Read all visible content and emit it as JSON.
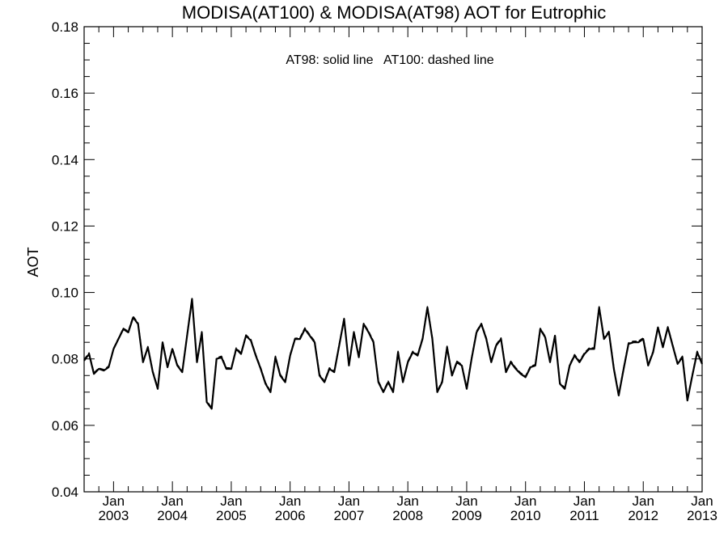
{
  "chart_data": {
    "type": "line",
    "title": "MODISA(AT100) & MODISA(AT98)  AOT for Eutrophic",
    "annotation": "AT98: solid line   AT100: dashed line",
    "ylabel": "AOT",
    "xlabel": "",
    "ylim": [
      0.04,
      0.18
    ],
    "yticks": [
      0.04,
      0.06,
      0.08,
      0.1,
      0.12,
      0.14,
      0.16,
      0.18
    ],
    "ytick_labels": [
      "0.04",
      "0.06",
      "0.08",
      "0.10",
      "0.12",
      "0.14",
      "0.16",
      "0.18"
    ],
    "xlim": [
      "2002-07",
      "2013-01"
    ],
    "xticks": [
      {
        "date": "2003-01",
        "month": "Jan",
        "year": "2003"
      },
      {
        "date": "2004-01",
        "month": "Jan",
        "year": "2004"
      },
      {
        "date": "2005-01",
        "month": "Jan",
        "year": "2005"
      },
      {
        "date": "2006-01",
        "month": "Jan",
        "year": "2006"
      },
      {
        "date": "2007-01",
        "month": "Jan",
        "year": "2007"
      },
      {
        "date": "2008-01",
        "month": "Jan",
        "year": "2008"
      },
      {
        "date": "2009-01",
        "month": "Jan",
        "year": "2009"
      },
      {
        "date": "2010-01",
        "month": "Jan",
        "year": "2010"
      },
      {
        "date": "2011-01",
        "month": "Jan",
        "year": "2011"
      },
      {
        "date": "2012-01",
        "month": "Jan",
        "year": "2012"
      },
      {
        "date": "2013-01",
        "month": "Jan",
        "year": "2013"
      }
    ],
    "grid": false,
    "x": [
      "2002-07",
      "2002-08",
      "2002-09",
      "2002-10",
      "2002-11",
      "2002-12",
      "2003-01",
      "2003-02",
      "2003-03",
      "2003-04",
      "2003-05",
      "2003-06",
      "2003-07",
      "2003-08",
      "2003-09",
      "2003-10",
      "2003-11",
      "2003-12",
      "2004-01",
      "2004-02",
      "2004-03",
      "2004-04",
      "2004-05",
      "2004-06",
      "2004-07",
      "2004-08",
      "2004-09",
      "2004-10",
      "2004-11",
      "2004-12",
      "2005-01",
      "2005-02",
      "2005-03",
      "2005-04",
      "2005-05",
      "2005-06",
      "2005-07",
      "2005-08",
      "2005-09",
      "2005-10",
      "2005-11",
      "2005-12",
      "2006-01",
      "2006-02",
      "2006-03",
      "2006-04",
      "2006-05",
      "2006-06",
      "2006-07",
      "2006-08",
      "2006-09",
      "2006-10",
      "2006-11",
      "2006-12",
      "2007-01",
      "2007-02",
      "2007-03",
      "2007-04",
      "2007-05",
      "2007-06",
      "2007-07",
      "2007-08",
      "2007-09",
      "2007-10",
      "2007-11",
      "2007-12",
      "2008-01",
      "2008-02",
      "2008-03",
      "2008-04",
      "2008-05",
      "2008-06",
      "2008-07",
      "2008-08",
      "2008-09",
      "2008-10",
      "2008-11",
      "2008-12",
      "2009-01",
      "2009-02",
      "2009-03",
      "2009-04",
      "2009-05",
      "2009-06",
      "2009-07",
      "2009-08",
      "2009-09",
      "2009-10",
      "2009-11",
      "2009-12",
      "2010-01",
      "2010-02",
      "2010-03",
      "2010-04",
      "2010-05",
      "2010-06",
      "2010-07",
      "2010-08",
      "2010-09",
      "2010-10",
      "2010-11",
      "2010-12",
      "2011-01",
      "2011-02",
      "2011-03",
      "2011-04",
      "2011-05",
      "2011-06",
      "2011-07",
      "2011-08",
      "2011-09",
      "2011-10",
      "2011-11",
      "2011-12",
      "2012-01",
      "2012-02",
      "2012-03",
      "2012-04",
      "2012-05",
      "2012-06",
      "2012-07",
      "2012-08",
      "2012-09",
      "2012-10",
      "2012-11",
      "2012-12",
      "2013-01"
    ],
    "series": [
      {
        "name": "AT98",
        "style": "solid",
        "color": "#000000",
        "values": [
          0.0795,
          0.0815,
          0.0755,
          0.077,
          0.0765,
          0.0775,
          0.083,
          0.086,
          0.089,
          0.088,
          0.0925,
          0.0905,
          0.079,
          0.0835,
          0.076,
          0.071,
          0.085,
          0.0775,
          0.083,
          0.078,
          0.076,
          0.087,
          0.098,
          0.079,
          0.088,
          0.067,
          0.065,
          0.08,
          0.0805,
          0.077,
          0.077,
          0.083,
          0.0815,
          0.087,
          0.0855,
          0.081,
          0.077,
          0.0725,
          0.07,
          0.0805,
          0.075,
          0.073,
          0.081,
          0.086,
          0.086,
          0.089,
          0.087,
          0.085,
          0.075,
          0.073,
          0.077,
          0.076,
          0.084,
          0.092,
          0.078,
          0.088,
          0.0805,
          0.0905,
          0.088,
          0.085,
          0.073,
          0.07,
          0.073,
          0.07,
          0.082,
          0.073,
          0.079,
          0.082,
          0.081,
          0.086,
          0.0955,
          0.086,
          0.07,
          0.073,
          0.0835,
          0.075,
          0.079,
          0.078,
          0.071,
          0.08,
          0.088,
          0.0905,
          0.086,
          0.079,
          0.084,
          0.086,
          0.076,
          0.079,
          0.077,
          0.0755,
          0.0745,
          0.0775,
          0.078,
          0.089,
          0.0865,
          0.079,
          0.087,
          0.0725,
          0.071,
          0.078,
          0.081,
          0.079,
          0.0815,
          0.083,
          0.083,
          0.0955,
          0.086,
          0.088,
          0.077,
          0.069,
          0.077,
          0.0845,
          0.085,
          0.085,
          0.086,
          0.078,
          0.082,
          0.0895,
          0.0835,
          0.0895,
          0.084,
          0.0785,
          0.0805,
          0.0675,
          0.075,
          0.082,
          0.0785
        ]
      },
      {
        "name": "AT100",
        "style": "dashed",
        "color": "#000000",
        "values": [
          0.0798,
          0.0818,
          0.0758,
          0.0772,
          0.0768,
          0.0778,
          0.0832,
          0.0862,
          0.0892,
          0.0883,
          0.0928,
          0.0908,
          0.0793,
          0.0837,
          0.0763,
          0.0713,
          0.0852,
          0.0778,
          0.0833,
          0.0783,
          0.0763,
          0.0872,
          0.0982,
          0.0793,
          0.0882,
          0.0673,
          0.0653,
          0.0803,
          0.0808,
          0.0773,
          0.0773,
          0.0833,
          0.0818,
          0.0872,
          0.0858,
          0.0813,
          0.0773,
          0.0728,
          0.0703,
          0.0808,
          0.0753,
          0.0733,
          0.0813,
          0.0862,
          0.0863,
          0.0893,
          0.0873,
          0.0853,
          0.0753,
          0.0733,
          0.0773,
          0.0763,
          0.0843,
          0.0922,
          0.0783,
          0.0882,
          0.0808,
          0.0907,
          0.0883,
          0.0853,
          0.0733,
          0.0703,
          0.0733,
          0.0703,
          0.0823,
          0.0733,
          0.0793,
          0.0823,
          0.0813,
          0.0863,
          0.0957,
          0.0863,
          0.0703,
          0.0733,
          0.0838,
          0.0753,
          0.0793,
          0.0783,
          0.0713,
          0.0803,
          0.0883,
          0.0907,
          0.0863,
          0.0793,
          0.0843,
          0.0863,
          0.0763,
          0.0793,
          0.0773,
          0.0758,
          0.0748,
          0.0778,
          0.0783,
          0.0892,
          0.0868,
          0.0793,
          0.0872,
          0.0728,
          0.0713,
          0.0783,
          0.0813,
          0.0793,
          0.0818,
          0.0833,
          0.0833,
          0.0957,
          0.0863,
          0.0883,
          0.0773,
          0.0693,
          0.0773,
          0.0848,
          0.0853,
          0.0853,
          0.0863,
          0.0783,
          0.0823,
          0.0897,
          0.0838,
          0.0897,
          0.0843,
          0.0788,
          0.0808,
          0.0678,
          0.0753,
          0.0823,
          0.0788
        ]
      }
    ]
  }
}
